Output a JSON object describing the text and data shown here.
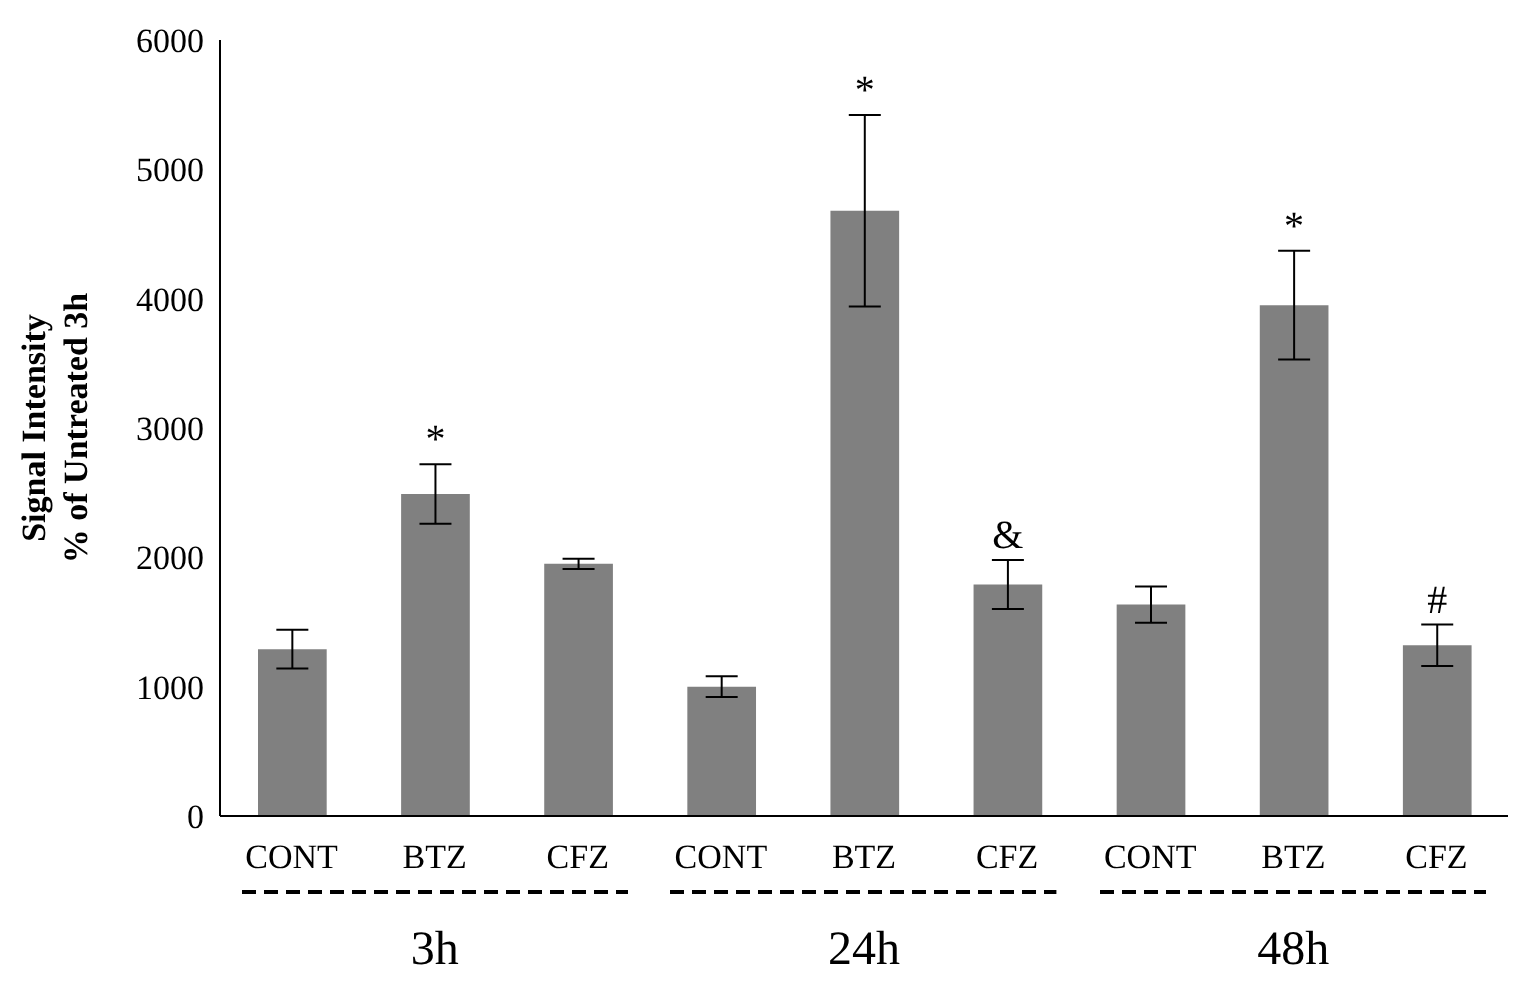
{
  "chart_data": {
    "type": "bar",
    "ylabel": "Signal Intensity\n% of Untreated 3h",
    "categories": [
      "CONT",
      "BTZ",
      "CFZ",
      "CONT",
      "BTZ",
      "CFZ",
      "CONT",
      "BTZ",
      "CFZ"
    ],
    "values": [
      1290,
      2490,
      1950,
      1000,
      4680,
      1790,
      1635,
      3950,
      1320
    ],
    "errors": [
      150,
      230,
      40,
      80,
      740,
      190,
      140,
      420,
      160
    ],
    "value_labels": [
      null,
      "*",
      null,
      null,
      "*",
      "&",
      null,
      "*",
      "#"
    ],
    "color": "#808080",
    "ylim": [
      0,
      6000
    ],
    "yticks": [
      0,
      1000,
      2000,
      3000,
      4000,
      5000,
      6000
    ],
    "annotations": [
      "3h",
      "24h",
      "48h"
    ],
    "grid": false,
    "legend": false
  }
}
